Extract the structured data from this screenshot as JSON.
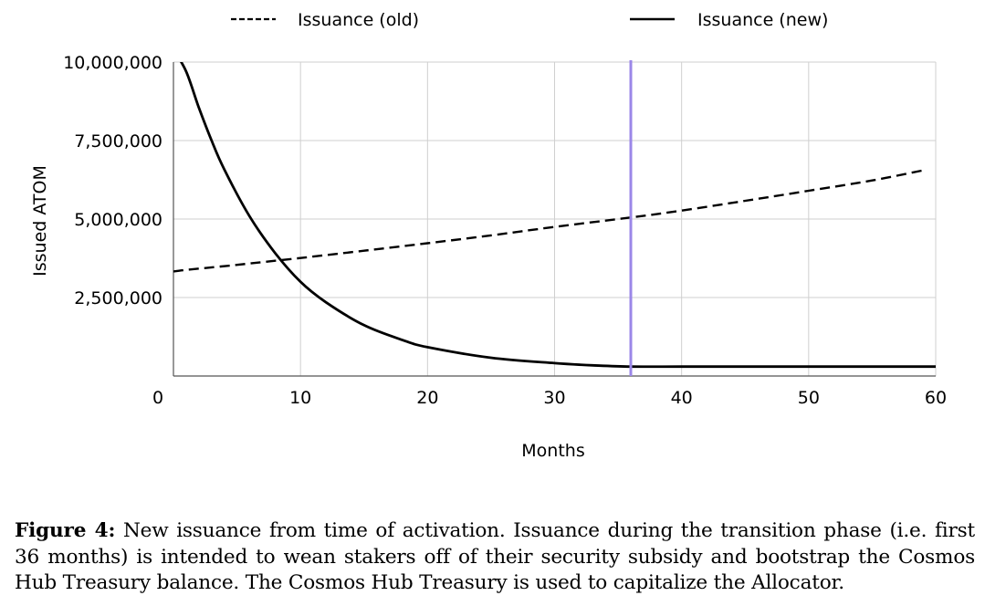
{
  "chart_data": {
    "type": "line",
    "xlabel": "Months",
    "ylabel": "Issued ATOM",
    "xlim": [
      0,
      60
    ],
    "ylim": [
      0,
      10000000
    ],
    "x_ticks": [
      0,
      10,
      20,
      30,
      40,
      50,
      60
    ],
    "y_ticks": [
      2500000,
      5000000,
      7500000,
      10000000
    ],
    "x_tick_labels": [
      "0",
      "10",
      "20",
      "30",
      "40",
      "50",
      "60"
    ],
    "y_tick_labels": [
      "2,500,000",
      "5,000,000",
      "7,500,000",
      "10,000,000"
    ],
    "grid": true,
    "legend_position": "top",
    "series": [
      {
        "name": "Issuance (old)",
        "style": "dashed",
        "color": "#000000",
        "x": [
          0,
          1,
          5,
          10,
          15,
          20,
          25,
          30,
          36,
          40,
          45,
          50,
          55,
          59
        ],
        "y": [
          3330000,
          3380000,
          3540000,
          3760000,
          3990000,
          4230000,
          4480000,
          4750000,
          5050000,
          5270000,
          5580000,
          5900000,
          6230000,
          6550000
        ]
      },
      {
        "name": "Issuance (new)",
        "style": "solid",
        "color": "#000000",
        "x": [
          0,
          1,
          2,
          3,
          4,
          6,
          8,
          10,
          12,
          15,
          18,
          20,
          25,
          30,
          33,
          36,
          40,
          45,
          50,
          55,
          60
        ],
        "y": [
          10400000,
          9700000,
          8550000,
          7500000,
          6580000,
          5080000,
          3920000,
          3000000,
          2350000,
          1620000,
          1150000,
          920000,
          580000,
          410000,
          340000,
          300000,
          300000,
          300000,
          300000,
          300000,
          300000
        ]
      }
    ],
    "vertical_line": {
      "x": 36,
      "color": "#9b87e8"
    }
  },
  "caption": {
    "label": "Figure 4:",
    "text": "New issuance from time of activation. Issuance during the transition phase (i.e. first 36 months) is intended to wean stakers off of their security subsidy and bootstrap the Cosmos Hub Treasury balance. The Cosmos Hub Treasury is used to capitalize the Allocator."
  }
}
